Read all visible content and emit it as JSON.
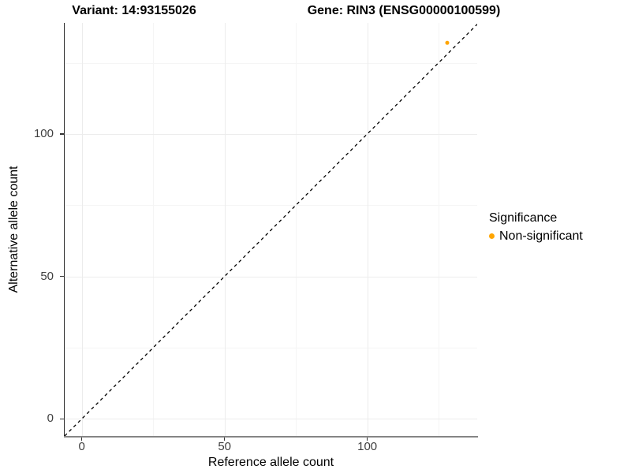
{
  "chart_data": {
    "type": "scatter",
    "titles": [
      "Variant: 14:93155026",
      "Gene: RIN3 (ENSG00000100599)"
    ],
    "xlabel": "Reference allele count",
    "ylabel": "Alternative allele count",
    "xlim": [
      -6,
      138.5
    ],
    "ylim": [
      -6,
      139
    ],
    "x_major_ticks": [
      0,
      50,
      100
    ],
    "x_minor_ticks": [
      25,
      75,
      125
    ],
    "y_major_ticks": [
      0,
      50,
      100
    ],
    "y_minor_ticks": [
      25,
      75,
      125
    ],
    "grid": "major+minor",
    "points": [
      {
        "x": 128,
        "y": 132,
        "series": "Non-significant",
        "color": "#FFA500"
      }
    ],
    "reference_line": {
      "slope": 1,
      "intercept": 0,
      "style": "dashed",
      "color": "#000000"
    },
    "legend": {
      "title": "Significance",
      "position": "right",
      "entries": [
        {
          "label": "Non-significant",
          "color": "#FFA500",
          "marker": "circle"
        }
      ]
    }
  }
}
